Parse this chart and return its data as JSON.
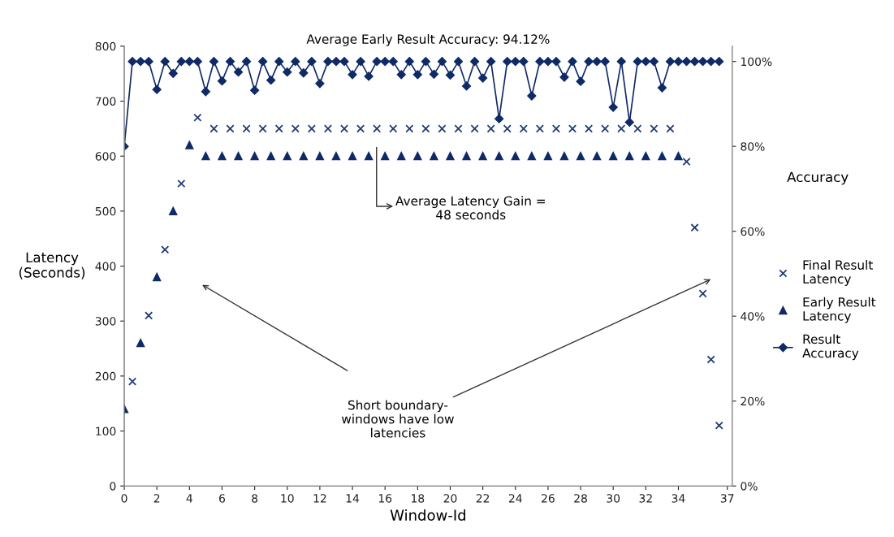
{
  "chart_data": {
    "type": "scatter",
    "xlabel": "Window-Id",
    "ylabel": "Latency\n(Seconds)",
    "y2label": "Accuracy",
    "xlim": [
      0,
      37.3
    ],
    "xticks": [
      0,
      2,
      4,
      6,
      8,
      10,
      12,
      14,
      16,
      18,
      20,
      22,
      24,
      26,
      28,
      30,
      32,
      34,
      37
    ],
    "ylim": [
      0,
      800
    ],
    "yticks": [
      0,
      100,
      200,
      300,
      400,
      500,
      600,
      700,
      800
    ],
    "y2lim": [
      0,
      103.6
    ],
    "y2ticks": [
      {
        "value": 0,
        "label": "0%"
      },
      {
        "value": 20,
        "label": "20%"
      },
      {
        "value": 40,
        "label": "40%"
      },
      {
        "value": 60,
        "label": "60%"
      },
      {
        "value": 80,
        "label": "80%"
      },
      {
        "value": 100,
        "label": "100%"
      }
    ],
    "grid": false,
    "legend": "right",
    "series": [
      {
        "name": "Final Result\nLatency",
        "marker": "cross",
        "color": "#1f3c78",
        "x": [
          0.5,
          1.5,
          2.5,
          3.5,
          4.5,
          5.5,
          6.5,
          7.5,
          8.5,
          9.5,
          10.5,
          11.5,
          12.5,
          13.5,
          14.5,
          15.5,
          16.5,
          17.5,
          18.5,
          19.5,
          20.5,
          21.5,
          22.5,
          23.5,
          24.5,
          25.5,
          26.5,
          27.5,
          28.5,
          29.5,
          30.5,
          31.5,
          32.5,
          33.5,
          34.5,
          35,
          35.5,
          36,
          36.5
        ],
        "values": [
          190,
          310,
          430,
          550,
          670,
          650,
          650,
          650,
          650,
          650,
          650,
          650,
          650,
          650,
          650,
          650,
          650,
          650,
          650,
          650,
          650,
          650,
          650,
          650,
          650,
          650,
          650,
          650,
          650,
          650,
          650,
          650,
          650,
          650,
          590,
          470,
          350,
          230,
          110
        ]
      },
      {
        "name": "Early Result\nLatency",
        "marker": "triangle",
        "color": "#0f2a66",
        "x": [
          0,
          1,
          2,
          3,
          4,
          5,
          6,
          7,
          8,
          9,
          10,
          11,
          12,
          13,
          14,
          15,
          16,
          17,
          18,
          19,
          20,
          21,
          22,
          23,
          24,
          25,
          26,
          27,
          28,
          29,
          30,
          31,
          32,
          33,
          34
        ],
        "values": [
          140,
          260,
          380,
          500,
          620,
          600,
          600,
          600,
          600,
          600,
          600,
          600,
          600,
          600,
          600,
          600,
          600,
          600,
          600,
          600,
          600,
          600,
          600,
          600,
          600,
          600,
          600,
          600,
          600,
          600,
          600,
          600,
          600,
          600,
          600
        ]
      },
      {
        "name": "Result\nAccuracy",
        "type": "line",
        "marker": "diamond",
        "axis": "y2",
        "color": "#0f2a66",
        "x": [
          0,
          0.5,
          1,
          1.5,
          2,
          2.5,
          3,
          3.5,
          4,
          4.5,
          5,
          5.5,
          6,
          6.5,
          7,
          7.5,
          8,
          8.5,
          9,
          9.5,
          10,
          10.5,
          11,
          11.5,
          12,
          12.5,
          13,
          13.5,
          14,
          14.5,
          15,
          15.5,
          16,
          16.5,
          17,
          17.5,
          18,
          18.5,
          19,
          19.5,
          20,
          20.5,
          21,
          21.5,
          22,
          22.5,
          23,
          23.5,
          24,
          24.5,
          25,
          25.5,
          26,
          26.5,
          27,
          27.5,
          28,
          28.5,
          29,
          29.5,
          30,
          30.5,
          31,
          31.5,
          32,
          32.5,
          33,
          33.5,
          34,
          34.5,
          35,
          35.5,
          36,
          36.5
        ],
        "values": [
          80,
          100,
          100,
          100,
          93.4,
          100,
          97.2,
          100,
          100,
          100,
          92.9,
          100,
          95.4,
          100,
          97.5,
          100,
          93.2,
          100,
          95.6,
          100,
          97.5,
          100,
          97.3,
          100,
          94.8,
          100,
          100,
          100,
          96.9,
          100,
          96.5,
          100,
          100,
          100,
          96.9,
          100,
          96.9,
          100,
          97,
          100,
          96.8,
          100,
          94.2,
          100,
          96.1,
          100,
          86.5,
          100,
          100,
          100,
          91.9,
          100,
          100,
          100,
          96.3,
          100,
          95.3,
          100,
          100,
          100,
          89.2,
          100,
          85.7,
          100,
          100,
          100,
          93.8,
          100,
          100,
          100,
          100,
          100,
          100,
          100
        ]
      }
    ],
    "annotations": [
      "Average Early Result Accuracy: 94.12%",
      "Average Latency Gain =\n48 seconds",
      "Short boundary-\nwindows have low\nlatencies"
    ]
  }
}
